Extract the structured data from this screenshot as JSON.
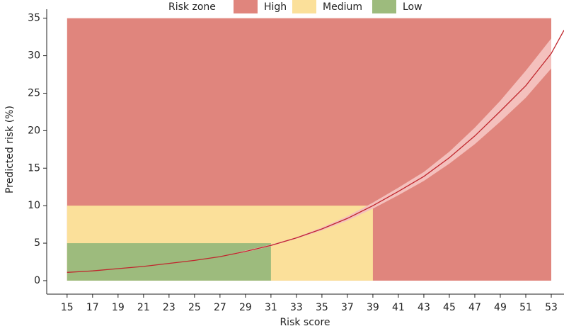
{
  "chart_data": {
    "type": "line",
    "x_label": "Risk score",
    "y_label": "Predicted risk (%)",
    "legend_title": "Risk zone",
    "legend_position": "top",
    "zones": [
      {
        "name": "High",
        "color": "#e0857d",
        "x": [
          15,
          53
        ],
        "y": [
          0,
          35
        ]
      },
      {
        "name": "Medium",
        "color": "#fbe09a",
        "x": [
          15,
          39
        ],
        "y": [
          0,
          10
        ]
      },
      {
        "name": "Low",
        "color": "#9dbb7d",
        "x": [
          15,
          31
        ],
        "y": [
          0,
          5
        ]
      }
    ],
    "x": [
      15,
      17,
      19,
      21,
      23,
      25,
      27,
      29,
      31,
      33,
      35,
      37,
      39,
      41,
      43,
      45,
      47,
      49,
      51,
      53,
      54
    ],
    "values": [
      1.1,
      1.3,
      1.6,
      1.9,
      2.3,
      2.7,
      3.2,
      3.9,
      4.7,
      5.7,
      6.9,
      8.3,
      10.0,
      11.9,
      13.9,
      16.4,
      19.3,
      22.6,
      26.0,
      30.3,
      33.4
    ],
    "ci_lower": [
      1.1,
      1.3,
      1.6,
      1.9,
      2.3,
      2.7,
      3.2,
      3.8,
      4.6,
      5.6,
      6.7,
      8.0,
      9.6,
      11.4,
      13.3,
      15.6,
      18.2,
      21.2,
      24.4,
      28.3,
      null
    ],
    "ci_upper": [
      1.1,
      1.3,
      1.6,
      1.9,
      2.3,
      2.7,
      3.2,
      4.0,
      4.8,
      5.8,
      7.1,
      8.6,
      10.4,
      12.4,
      14.5,
      17.2,
      20.4,
      24.0,
      28.0,
      32.3,
      null
    ],
    "color": "#c0262d",
    "ci_color": "#f4c0bd",
    "xlim": [
      13.4,
      54
    ],
    "ylim": [
      -1.8,
      36.2
    ],
    "xticks": [
      15,
      17,
      19,
      21,
      23,
      25,
      27,
      29,
      31,
      33,
      35,
      37,
      39,
      41,
      43,
      45,
      47,
      49,
      51,
      53
    ],
    "yticks": [
      0,
      5,
      10,
      15,
      20,
      25,
      30,
      35
    ]
  }
}
